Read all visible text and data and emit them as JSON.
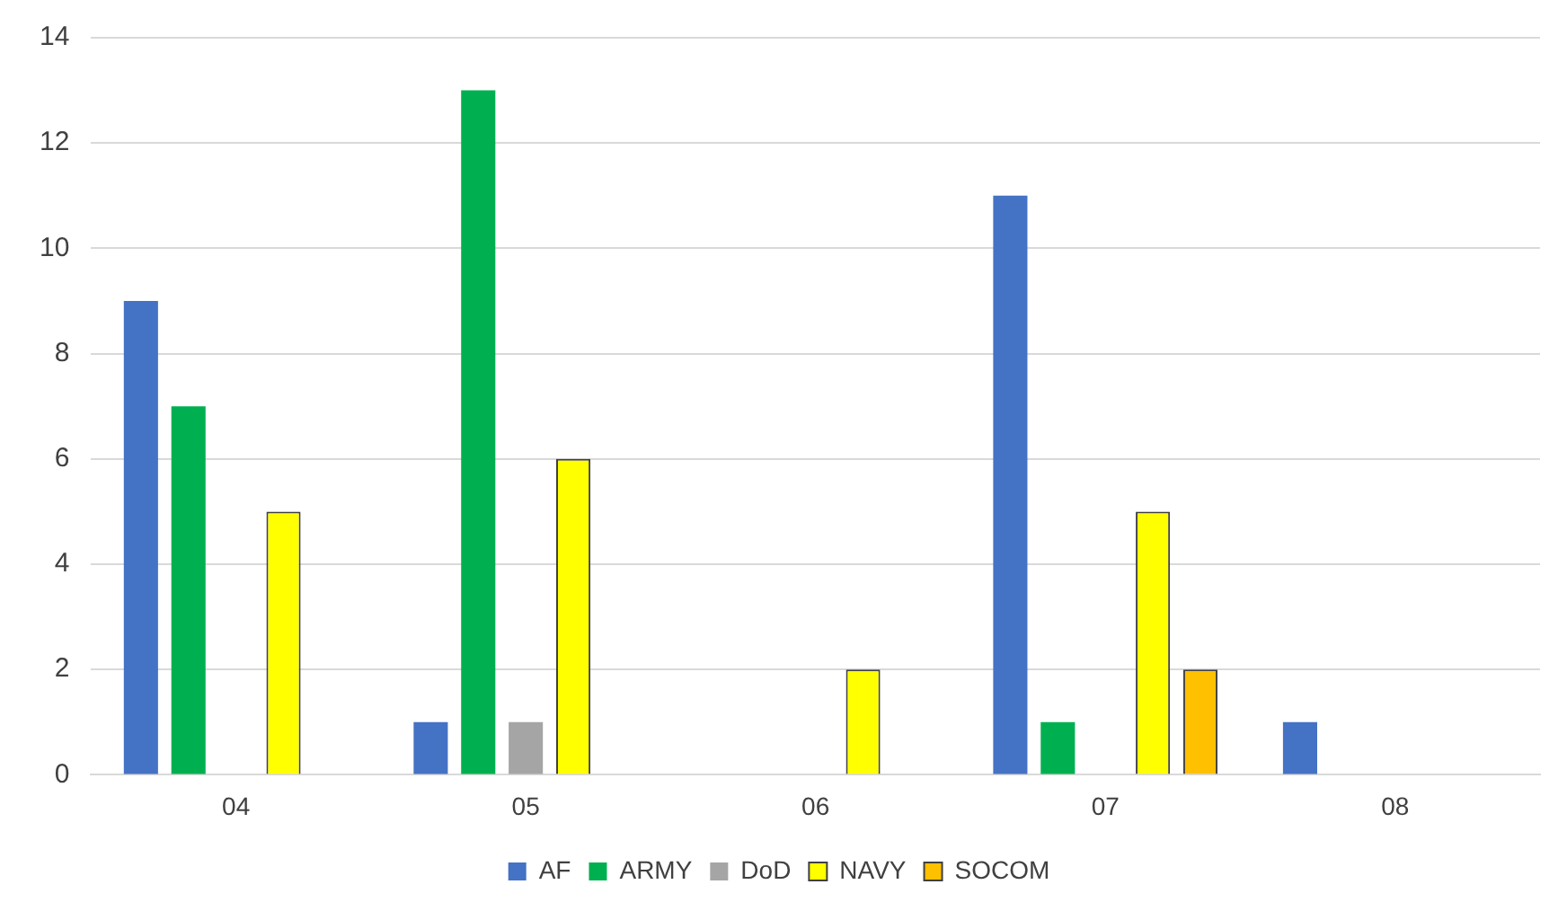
{
  "chart_data": {
    "type": "bar",
    "categories": [
      "04",
      "05",
      "06",
      "07",
      "08"
    ],
    "series": [
      {
        "name": "AF",
        "color": "#4472c4",
        "values": [
          9,
          1,
          0,
          11,
          1
        ]
      },
      {
        "name": "ARMY",
        "color": "#00b050",
        "values": [
          7,
          13,
          0,
          1,
          0
        ]
      },
      {
        "name": "DoD",
        "color": "#a5a5a5",
        "values": [
          0,
          1,
          0,
          0,
          0
        ]
      },
      {
        "name": "NAVY",
        "color": "#ffff00",
        "values": [
          5,
          6,
          2,
          5,
          0
        ]
      },
      {
        "name": "SOCOM",
        "color": "#ffc000",
        "values": [
          0,
          0,
          0,
          2,
          0
        ]
      }
    ],
    "ylim": [
      0,
      14
    ],
    "yticks": [
      0,
      2,
      4,
      6,
      8,
      10,
      12,
      14
    ],
    "grid": "y",
    "legend": "bottom"
  }
}
